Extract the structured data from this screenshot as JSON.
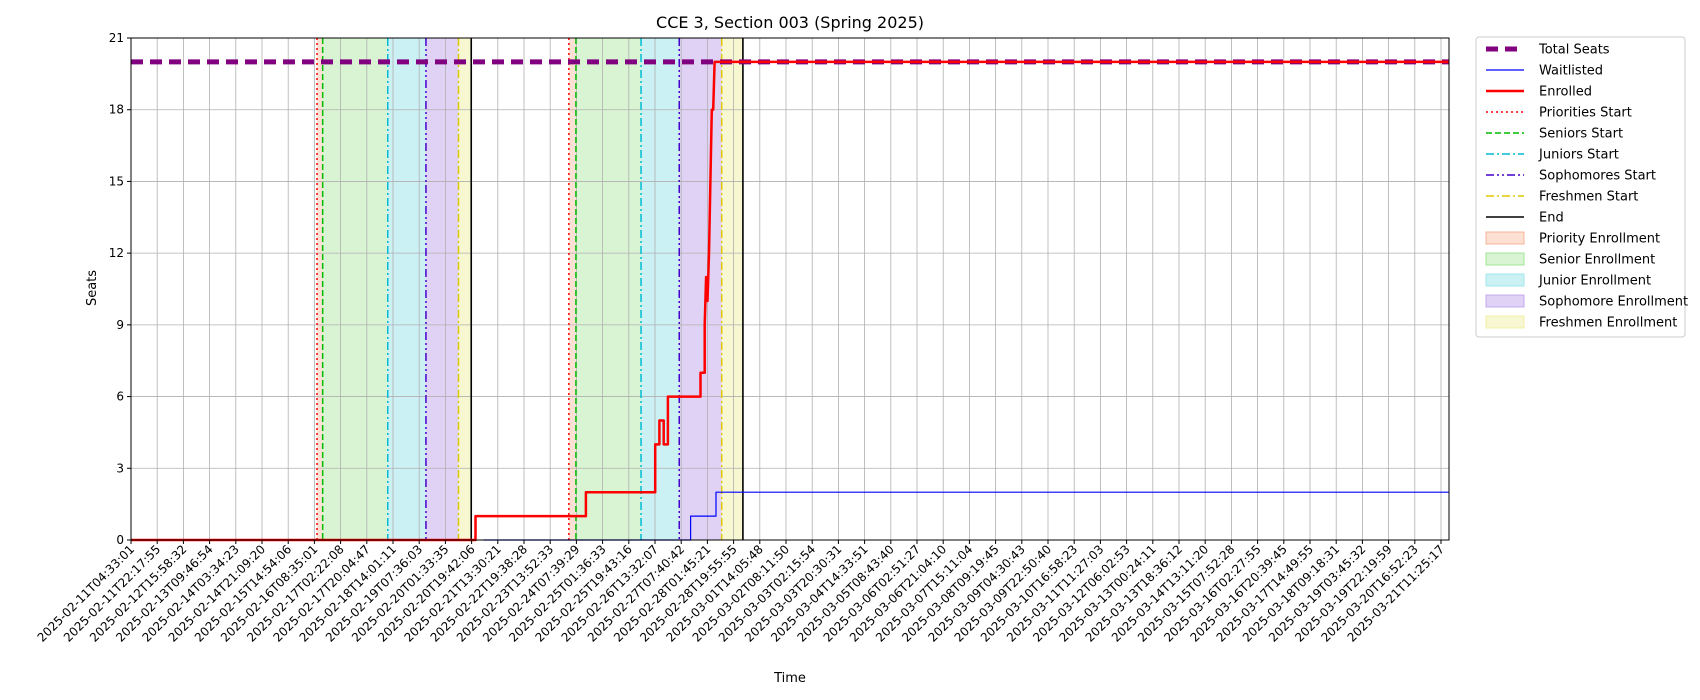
{
  "chart_data": {
    "type": "line",
    "title": "CCE 3, Section 003 (Spring 2025)",
    "xlabel": "Time",
    "ylabel": "Seats",
    "ylim": [
      0,
      21
    ],
    "yticks": [
      0,
      3,
      6,
      9,
      12,
      15,
      18,
      21
    ],
    "xlim": [
      "2025-02-11T04:33:01",
      "2025-03-22T00:00:00"
    ],
    "grid": true,
    "legend_position": "outside-right",
    "xtick_labels": [
      "2025-02-11T04:33:01",
      "2025-02-11T22:17:55",
      "2025-02-12T15:58:32",
      "2025-02-13T09:46:54",
      "2025-02-14T03:34:23",
      "2025-02-14T21:09:20",
      "2025-02-15T14:54:06",
      "2025-02-16T08:35:01",
      "2025-02-17T02:22:08",
      "2025-02-17T20:04:47",
      "2025-02-18T14:01:11",
      "2025-02-19T07:36:03",
      "2025-02-20T01:33:35",
      "2025-02-20T19:42:06",
      "2025-02-21T13:30:21",
      "2025-02-22T19:38:28",
      "2025-02-23T13:52:33",
      "2025-02-24T07:39:29",
      "2025-02-25T01:36:33",
      "2025-02-25T19:43:16",
      "2025-02-26T13:32:07",
      "2025-02-27T07:40:42",
      "2025-02-28T01:45:21",
      "2025-02-28T19:55:55",
      "2025-03-01T14:05:48",
      "2025-03-02T08:11:50",
      "2025-03-03T02:15:54",
      "2025-03-03T20:30:31",
      "2025-03-04T14:33:51",
      "2025-03-05T08:43:40",
      "2025-03-06T02:51:27",
      "2025-03-06T21:04:10",
      "2025-03-07T15:11:04",
      "2025-03-08T09:19:45",
      "2025-03-09T04:30:43",
      "2025-03-09T22:50:40",
      "2025-03-10T16:58:23",
      "2025-03-11T11:27:03",
      "2025-03-12T06:02:53",
      "2025-03-13T00:24:11",
      "2025-03-13T18:36:12",
      "2025-03-14T13:11:20",
      "2025-03-15T07:52:28",
      "2025-03-16T02:27:55",
      "2025-03-16T20:39:45",
      "2025-03-17T14:49:55",
      "2025-03-18T09:18:31",
      "2025-03-19T03:45:32",
      "2025-03-19T22:19:59",
      "2025-03-20T16:52:23",
      "2025-03-21T11:25:17"
    ],
    "series": [
      {
        "name": "Total Seats",
        "color": "#800080",
        "style": "dashed-thick",
        "points": [
          [
            "2025-02-11T04:33:01",
            20
          ],
          [
            "2025-03-22T00:00:00",
            20
          ]
        ]
      },
      {
        "name": "Waitlisted",
        "color": "#0000ff",
        "style": "solid-thin",
        "points": [
          [
            "2025-02-21T13:30:21",
            0
          ],
          [
            "2025-02-27T16:00:00",
            0
          ],
          [
            "2025-02-27T16:00:00",
            1
          ],
          [
            "2025-02-28T10:00:00",
            1
          ],
          [
            "2025-02-28T10:00:00",
            2
          ],
          [
            "2025-03-22T00:00:00",
            2
          ]
        ]
      },
      {
        "name": "Enrolled",
        "color": "#ff0000",
        "style": "solid-thick",
        "points": [
          [
            "2025-02-11T04:33:01",
            0
          ],
          [
            "2025-02-21T08:00:00",
            0
          ],
          [
            "2025-02-21T08:00:00",
            1
          ],
          [
            "2025-02-24T14:00:00",
            1
          ],
          [
            "2025-02-24T14:00:00",
            2
          ],
          [
            "2025-02-26T15:00:00",
            2
          ],
          [
            "2025-02-26T15:00:00",
            4
          ],
          [
            "2025-02-26T18:00:00",
            4
          ],
          [
            "2025-02-26T18:00:00",
            5
          ],
          [
            "2025-02-26T21:00:00",
            5
          ],
          [
            "2025-02-26T21:00:00",
            4
          ],
          [
            "2025-02-27T00:00:00",
            4
          ],
          [
            "2025-02-27T00:00:00",
            6
          ],
          [
            "2025-02-27T23:00:00",
            6
          ],
          [
            "2025-02-27T23:00:00",
            7
          ],
          [
            "2025-02-28T02:00:00",
            7
          ],
          [
            "2025-02-28T02:00:00",
            9
          ],
          [
            "2025-02-28T03:00:00",
            11
          ],
          [
            "2025-02-28T04:00:00",
            10
          ],
          [
            "2025-02-28T05:00:00",
            12
          ],
          [
            "2025-02-28T06:00:00",
            15
          ],
          [
            "2025-02-28T07:00:00",
            18
          ],
          [
            "2025-02-28T08:00:00",
            18
          ],
          [
            "2025-02-28T09:00:00",
            20
          ],
          [
            "2025-03-22T00:00:00",
            20
          ]
        ]
      }
    ],
    "markers": [
      {
        "name": "Priorities Start",
        "color": "#ff0000",
        "style": "dotted",
        "times": [
          "2025-02-16T16:00:00",
          "2025-02-24T02:00:00"
        ]
      },
      {
        "name": "Seniors Start",
        "color": "#00bb00",
        "style": "dashed",
        "times": [
          "2025-02-16T20:00:00",
          "2025-02-24T07:00:00"
        ]
      },
      {
        "name": "Juniors Start",
        "color": "#00bcd4",
        "style": "dashdot",
        "times": [
          "2025-02-18T18:00:00",
          "2025-02-26T05:00:00"
        ]
      },
      {
        "name": "Sophomores Start",
        "color": "#4400cc",
        "style": "dashdotdot",
        "times": [
          "2025-02-19T21:00:00",
          "2025-02-27T08:00:00"
        ]
      },
      {
        "name": "Freshmen Start",
        "color": "#e0c800",
        "style": "dashdot",
        "times": [
          "2025-02-20T20:00:00",
          "2025-02-28T14:00:00"
        ]
      },
      {
        "name": "End",
        "color": "#000000",
        "style": "solid",
        "times": [
          "2025-02-21T05:00:00",
          "2025-03-01T05:00:00"
        ]
      }
    ],
    "regions": [
      {
        "name": "Priority Enrollment",
        "color": "#f4a582",
        "opacity": 0.35,
        "spans": [
          [
            "2025-02-16T16:00:00",
            "2025-02-16T20:00:00"
          ],
          [
            "2025-02-24T02:00:00",
            "2025-02-24T07:00:00"
          ]
        ]
      },
      {
        "name": "Senior Enrollment",
        "color": "#90e080",
        "opacity": 0.35,
        "spans": [
          [
            "2025-02-16T20:00:00",
            "2025-02-18T18:00:00"
          ],
          [
            "2025-02-24T07:00:00",
            "2025-02-26T05:00:00"
          ]
        ]
      },
      {
        "name": "Junior Enrollment",
        "color": "#8fe0e8",
        "opacity": 0.45,
        "spans": [
          [
            "2025-02-18T18:00:00",
            "2025-02-19T21:00:00"
          ],
          [
            "2025-02-26T05:00:00",
            "2025-02-27T08:00:00"
          ]
        ]
      },
      {
        "name": "Sophomore Enrollment",
        "color": "#b89be8",
        "opacity": 0.45,
        "spans": [
          [
            "2025-02-19T21:00:00",
            "2025-02-20T20:00:00"
          ],
          [
            "2025-02-27T08:00:00",
            "2025-02-28T14:00:00"
          ]
        ]
      },
      {
        "name": "Freshmen Enrollment",
        "color": "#eeee99",
        "opacity": 0.45,
        "spans": [
          [
            "2025-02-20T20:00:00",
            "2025-02-21T05:00:00"
          ],
          [
            "2025-02-28T14:00:00",
            "2025-03-01T05:00:00"
          ]
        ]
      }
    ],
    "legend": [
      {
        "label": "Total Seats",
        "kind": "line",
        "color": "#800080",
        "style": "dashed-thick"
      },
      {
        "label": "Waitlisted",
        "kind": "line",
        "color": "#0000ff",
        "style": "solid-thin"
      },
      {
        "label": "Enrolled",
        "kind": "line",
        "color": "#ff0000",
        "style": "solid-thick"
      },
      {
        "label": "Priorities Start",
        "kind": "line",
        "color": "#ff0000",
        "style": "dotted"
      },
      {
        "label": "Seniors Start",
        "kind": "line",
        "color": "#00bb00",
        "style": "dashed"
      },
      {
        "label": "Juniors Start",
        "kind": "line",
        "color": "#00bcd4",
        "style": "dashdot"
      },
      {
        "label": "Sophomores Start",
        "kind": "line",
        "color": "#4400cc",
        "style": "dashdotdot"
      },
      {
        "label": "Freshmen Start",
        "kind": "line",
        "color": "#e0c800",
        "style": "dashdot"
      },
      {
        "label": "End",
        "kind": "line",
        "color": "#000000",
        "style": "solid"
      },
      {
        "label": "Priority Enrollment",
        "kind": "patch",
        "color": "#f4a582",
        "opacity": 0.35
      },
      {
        "label": "Senior Enrollment",
        "kind": "patch",
        "color": "#90e080",
        "opacity": 0.35
      },
      {
        "label": "Junior Enrollment",
        "kind": "patch",
        "color": "#8fe0e8",
        "opacity": 0.45
      },
      {
        "label": "Sophomore Enrollment",
        "kind": "patch",
        "color": "#b89be8",
        "opacity": 0.45
      },
      {
        "label": "Freshmen Enrollment",
        "kind": "patch",
        "color": "#eeee99",
        "opacity": 0.45
      }
    ]
  }
}
